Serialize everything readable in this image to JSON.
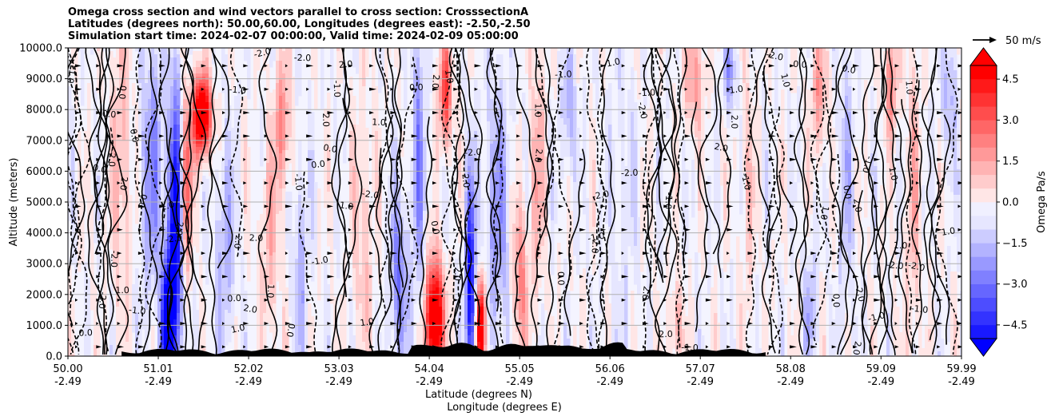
{
  "chart_data": {
    "type": "heatmap",
    "title": [
      "Omega cross section and wind vectors parallel to cross section: CrosssectionA",
      "Latitudes (degrees north): 50.00,60.00, Longitudes (degrees east): -2.50,-2.50",
      "Simulation start time: 2024-02-07 00:00:00, Valid time: 2024-02-09 05:00:00"
    ],
    "xlabel_lat": "Latitude (degrees N)",
    "xlabel_lon": "Longitude (degrees E)",
    "ylabel": "Altitude (meters)",
    "ylim": [
      0,
      10000
    ],
    "xlim": [
      50.0,
      59.99
    ],
    "yticks": [
      "0.0",
      "1000.0",
      "2000.0",
      "3000.0",
      "4000.0",
      "5000.0",
      "6000.0",
      "7000.0",
      "8000.0",
      "9000.0",
      "10000.0"
    ],
    "xticks": [
      {
        "lat": "50.00",
        "lon": "-2.49"
      },
      {
        "lat": "51.01",
        "lon": "-2.49"
      },
      {
        "lat": "52.02",
        "lon": "-2.49"
      },
      {
        "lat": "53.03",
        "lon": "-2.49"
      },
      {
        "lat": "54.04",
        "lon": "-2.49"
      },
      {
        "lat": "55.05",
        "lon": "-2.49"
      },
      {
        "lat": "56.06",
        "lon": "-2.49"
      },
      {
        "lat": "57.07",
        "lon": "-2.49"
      },
      {
        "lat": "58.08",
        "lon": "-2.49"
      },
      {
        "lat": "59.09",
        "lon": "-2.49"
      },
      {
        "lat": "59.99",
        "lon": "-2.49"
      }
    ],
    "colorbar": {
      "label": "Omega Pa/s",
      "range": [
        -5.0,
        5.0
      ],
      "ticks": [
        "4.5",
        "3.0",
        "1.5",
        "0.0",
        "−1.5",
        "−3.0",
        "−4.5"
      ],
      "colormap": "bwr",
      "extend": "both"
    },
    "quiver_key": {
      "label": "50 m/s"
    },
    "contour_labels": [
      "0.0",
      "1.0",
      "-1.0",
      "2.0",
      "-2.0"
    ],
    "features": [
      {
        "lat": 51.2,
        "omega_min": -5.0,
        "note": "strong descending core near 51.1-51.3"
      },
      {
        "lat": 51.5,
        "omega_max": 5.0,
        "note": "strong positive core aloft 7000-8500 m"
      },
      {
        "lat": 54.1,
        "omega_max": 5.0,
        "note": "strong positive low level 0-2500 m"
      },
      {
        "lat": 54.6,
        "omega_max": 5.0,
        "note": "strong positive low level 0-2000 m"
      },
      {
        "lat": 53.9,
        "omega_min": -4.0,
        "note": "negative column"
      }
    ]
  },
  "colors": {
    "negative": "#0000ff",
    "positive": "#ff0000",
    "neutral": "#ffffff",
    "terrain": "#000000"
  }
}
